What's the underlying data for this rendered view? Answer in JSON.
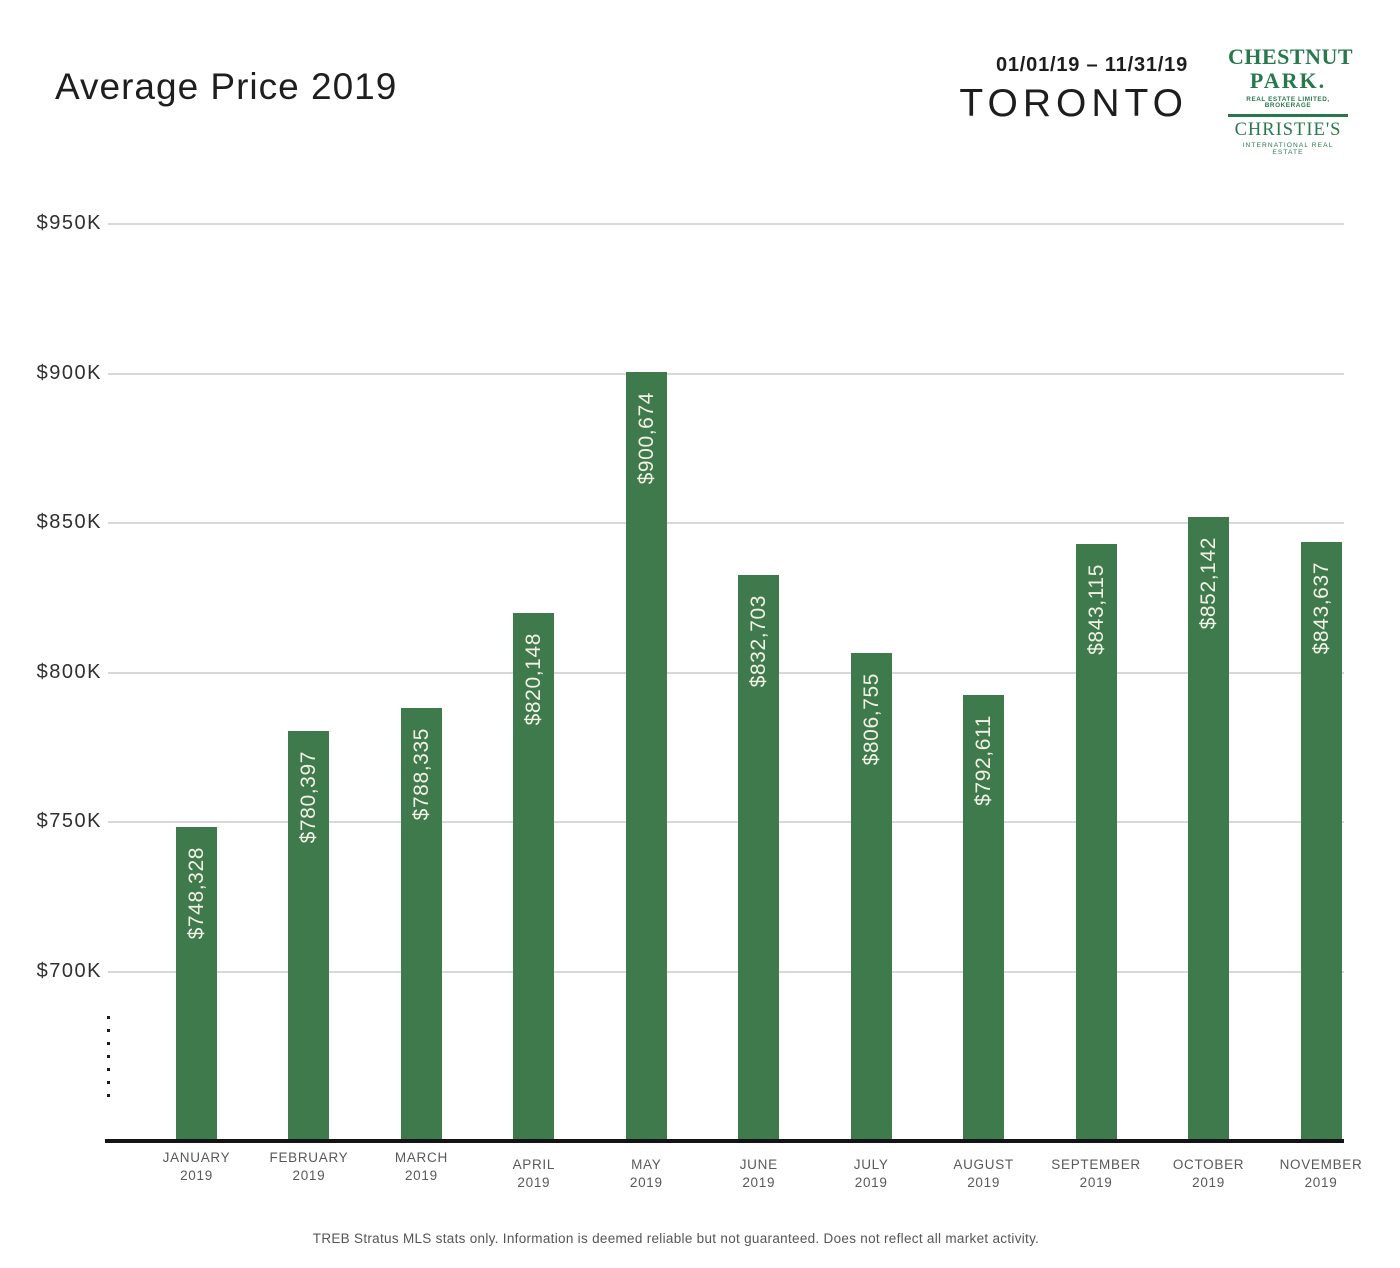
{
  "header": {
    "title": "Average Price 2019",
    "date_range": "01/01/19 – 11/31/19",
    "region": "TORONTO",
    "logo": {
      "brand_line1": "CHESTNUT",
      "brand_line2": "PARK.",
      "brand_line3": "REAL ESTATE LIMITED, BROKERAGE",
      "affiliate_line1": "CHRISTIE'S",
      "affiliate_line2": "INTERNATIONAL REAL ESTATE",
      "brand_color": "#27794c"
    }
  },
  "chart_data": {
    "type": "bar",
    "title": "Average Price 2019",
    "subtitle": "TORONTO 01/01/19 – 11/31/19",
    "categories": [
      "JANUARY",
      "FEBRUARY",
      "MARCH",
      "APRIL",
      "MAY",
      "JUNE",
      "JULY",
      "AUGUST",
      "SEPTEMBER",
      "OCTOBER",
      "NOVEMBER"
    ],
    "category_year": "2019",
    "values": [
      748328,
      780397,
      788335,
      820148,
      900674,
      832703,
      806755,
      792611,
      843115,
      852142,
      843637
    ],
    "value_labels": [
      "$748,328",
      "$780,397",
      "$788,335",
      "$820,148",
      "$900,674",
      "$832,703",
      "$806,755",
      "$792,611",
      "$843,115",
      "$852,142",
      "$843,637"
    ],
    "xlabel": "",
    "ylabel": "",
    "y_axis": {
      "tick_labels": [
        "$700K",
        "$750K",
        "$800K",
        "$850K",
        "$900K",
        "$950K"
      ],
      "min": 700000,
      "max": 950000,
      "step": 50000,
      "axis_break_below_min": true
    },
    "grid": true,
    "legend": "none",
    "bar_color": "#3e7a4b",
    "bar_label_color": "#f2f0e7",
    "gridline_color": "#d8d8d8",
    "axis_color": "#141414"
  },
  "footer": {
    "disclaimer": "TREB Stratus MLS stats only. Information is deemed reliable but not guaranteed. Does not reflect all market activity."
  }
}
